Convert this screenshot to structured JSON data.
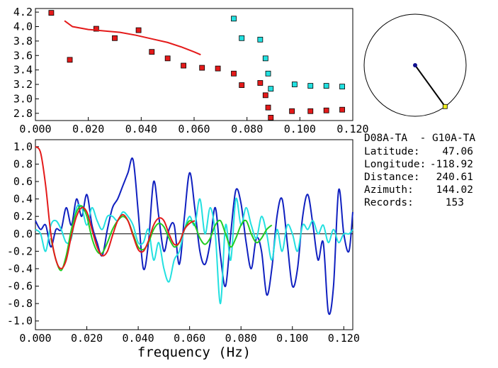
{
  "info": {
    "station_pair": "D08A-TA  - G10A-TA",
    "latitude_label": "Latitude:",
    "latitude_value": "47.06",
    "longitude_label": "Longitude:",
    "longitude_value": "-118.92",
    "distance_label": "Distance:",
    "distance_value": "240.61",
    "azimuth_label": "Azimuth:",
    "azimuth_value": "144.02",
    "records_label": "Records:",
    "records_value": "153"
  },
  "colors": {
    "red": "#e41a1a",
    "cyan": "#22e0e0",
    "blue": "#1020c0",
    "green": "#22cc22",
    "navy": "#101090",
    "yellow": "#f0f020"
  },
  "chart_data": [
    {
      "type": "scatter",
      "xlim": [
        0.0,
        0.12
      ],
      "ylim": [
        2.7,
        4.25
      ],
      "x_ticks": [
        "0.000",
        "0.020",
        "0.040",
        "0.060",
        "0.080",
        "0.100",
        "0.120"
      ],
      "y_ticks": [
        "2.8",
        "3.0",
        "3.2",
        "3.4",
        "3.6",
        "3.8",
        "4.0",
        "4.2"
      ],
      "series": [
        {
          "color": "red",
          "marker": "square",
          "points": [
            [
              0.006,
              4.19
            ],
            [
              0.013,
              3.54
            ],
            [
              0.023,
              3.97
            ],
            [
              0.03,
              3.84
            ],
            [
              0.039,
              3.95
            ],
            [
              0.044,
              3.65
            ],
            [
              0.05,
              3.56
            ],
            [
              0.056,
              3.46
            ],
            [
              0.063,
              3.43
            ],
            [
              0.069,
              3.42
            ],
            [
              0.075,
              3.35
            ],
            [
              0.078,
              3.19
            ],
            [
              0.085,
              3.22
            ],
            [
              0.087,
              3.05
            ],
            [
              0.088,
              2.88
            ],
            [
              0.089,
              2.74
            ],
            [
              0.097,
              2.83
            ],
            [
              0.104,
              2.83
            ],
            [
              0.11,
              2.84
            ],
            [
              0.116,
              2.85
            ]
          ]
        },
        {
          "color": "cyan",
          "marker": "square",
          "points": [
            [
              0.075,
              4.11
            ],
            [
              0.078,
              3.84
            ],
            [
              0.085,
              3.82
            ],
            [
              0.087,
              3.56
            ],
            [
              0.088,
              3.35
            ],
            [
              0.089,
              3.14
            ],
            [
              0.098,
              3.2
            ],
            [
              0.104,
              3.18
            ],
            [
              0.11,
              3.18
            ],
            [
              0.116,
              3.17
            ]
          ]
        },
        {
          "color": "red",
          "marker": "line",
          "points": [
            [
              0.011,
              4.08
            ],
            [
              0.014,
              4.0
            ],
            [
              0.02,
              3.96
            ],
            [
              0.026,
              3.94
            ],
            [
              0.032,
              3.92
            ],
            [
              0.038,
              3.88
            ],
            [
              0.044,
              3.83
            ],
            [
              0.05,
              3.78
            ],
            [
              0.055,
              3.72
            ],
            [
              0.06,
              3.65
            ],
            [
              0.0625,
              3.61
            ]
          ]
        }
      ]
    },
    {
      "type": "polar",
      "azimuth_deg": 144.02,
      "radius_fraction": 1.0
    },
    {
      "type": "line",
      "xlabel": "frequency (Hz)",
      "xlim": [
        0.0,
        0.1235
      ],
      "ylim": [
        -1.1,
        1.08
      ],
      "x_ticks": [
        "0.000",
        "0.020",
        "0.040",
        "0.060",
        "0.080",
        "0.100",
        "0.120"
      ],
      "y_ticks": [
        "1.0",
        "0.8",
        "0.6",
        "0.4",
        "0.2",
        "0.0",
        "-0.2",
        "-0.4",
        "-0.6",
        "-0.8",
        "-1.0"
      ],
      "series": [
        {
          "color": "blue",
          "x": [
            0.0,
            0.002,
            0.004,
            0.006,
            0.008,
            0.01,
            0.012,
            0.014,
            0.016,
            0.018,
            0.02,
            0.022,
            0.024,
            0.026,
            0.028,
            0.03,
            0.032,
            0.034,
            0.036,
            0.038,
            0.04,
            0.042,
            0.044,
            0.046,
            0.048,
            0.05,
            0.052,
            0.054,
            0.056,
            0.058,
            0.06,
            0.062,
            0.064,
            0.066,
            0.068,
            0.07,
            0.072,
            0.074,
            0.076,
            0.078,
            0.08,
            0.082,
            0.084,
            0.086,
            0.088,
            0.09,
            0.092,
            0.094,
            0.096,
            0.098,
            0.1,
            0.102,
            0.104,
            0.106,
            0.108,
            0.11,
            0.112,
            0.114,
            0.116,
            0.118,
            0.12,
            0.122,
            0.1235
          ],
          "values": [
            0.15,
            0.05,
            0.1,
            -0.15,
            0.05,
            0.05,
            0.3,
            0.1,
            0.4,
            0.2,
            0.45,
            0.1,
            -0.1,
            -0.25,
            0.05,
            0.3,
            0.4,
            0.55,
            0.7,
            0.85,
            0.25,
            -0.4,
            -0.1,
            0.6,
            0.2,
            -0.2,
            0.05,
            0.1,
            -0.35,
            0.2,
            0.7,
            0.3,
            -0.2,
            -0.35,
            -0.1,
            0.3,
            -0.25,
            -0.6,
            0.0,
            0.5,
            0.35,
            -0.1,
            -0.4,
            -0.05,
            -0.2,
            -0.7,
            -0.4,
            0.2,
            0.4,
            -0.1,
            -0.6,
            -0.4,
            0.2,
            0.45,
            0.1,
            -0.3,
            -0.1,
            -0.9,
            -0.6,
            0.5,
            0.0,
            -0.2,
            0.25
          ]
        },
        {
          "color": "cyan",
          "x": [
            0.0,
            0.002,
            0.004,
            0.006,
            0.008,
            0.01,
            0.012,
            0.014,
            0.016,
            0.018,
            0.02,
            0.022,
            0.024,
            0.026,
            0.028,
            0.03,
            0.032,
            0.034,
            0.036,
            0.038,
            0.04,
            0.042,
            0.044,
            0.046,
            0.048,
            0.05,
            0.052,
            0.054,
            0.056,
            0.058,
            0.06,
            0.062,
            0.064,
            0.066,
            0.068,
            0.07,
            0.072,
            0.074,
            0.076,
            0.078,
            0.08,
            0.082,
            0.084,
            0.086,
            0.088,
            0.09,
            0.092,
            0.094,
            0.096,
            0.098,
            0.1,
            0.102,
            0.104,
            0.106,
            0.108,
            0.11,
            0.112,
            0.114,
            0.116,
            0.118,
            0.12,
            0.122,
            0.1235
          ],
          "values": [
            0.05,
            0.0,
            -0.2,
            0.1,
            0.15,
            0.05,
            -0.1,
            -0.05,
            0.3,
            0.3,
            0.1,
            0.3,
            0.15,
            0.05,
            0.2,
            0.2,
            0.15,
            0.25,
            0.2,
            0.1,
            -0.1,
            -0.1,
            0.05,
            -0.3,
            -0.1,
            -0.4,
            -0.55,
            -0.3,
            -0.2,
            0.05,
            0.2,
            0.1,
            0.4,
            0.0,
            0.3,
            0.0,
            -0.8,
            0.1,
            -0.3,
            0.4,
            0.1,
            0.3,
            0.1,
            -0.05,
            0.2,
            0.0,
            -0.3,
            0.05,
            -0.2,
            0.1,
            0.0,
            -0.2,
            0.1,
            0.05,
            0.15,
            0.0,
            0.1,
            -0.1,
            0.05,
            -0.1,
            0.0,
            0.0,
            0.05
          ]
        },
        {
          "color": "green",
          "x": [
            0.006,
            0.008,
            0.01,
            0.012,
            0.014,
            0.016,
            0.018,
            0.02,
            0.022,
            0.024,
            0.026,
            0.028,
            0.03,
            0.032,
            0.034,
            0.036,
            0.038,
            0.04,
            0.042,
            0.044,
            0.046,
            0.048,
            0.05,
            0.052,
            0.054,
            0.056,
            0.058,
            0.06,
            0.062,
            0.064,
            0.066,
            0.068,
            0.07,
            0.072,
            0.074,
            0.076,
            0.078,
            0.08,
            0.082,
            0.084,
            0.086,
            0.088,
            0.09,
            0.092
          ],
          "values": [
            -0.05,
            -0.3,
            -0.42,
            -0.25,
            0.05,
            0.25,
            0.32,
            0.2,
            -0.05,
            -0.2,
            -0.22,
            -0.1,
            0.05,
            0.15,
            0.2,
            0.15,
            0.0,
            -0.15,
            -0.18,
            -0.1,
            0.05,
            0.12,
            0.08,
            -0.05,
            -0.15,
            -0.1,
            0.05,
            0.15,
            0.1,
            -0.05,
            -0.12,
            -0.05,
            0.1,
            0.15,
            0.0,
            -0.15,
            -0.05,
            0.1,
            0.15,
            0.0,
            -0.1,
            -0.05,
            0.05,
            0.1
          ]
        },
        {
          "color": "red",
          "x": [
            0.0,
            0.002,
            0.004,
            0.006,
            0.008,
            0.01,
            0.012,
            0.014,
            0.016,
            0.018,
            0.02,
            0.022,
            0.024,
            0.026,
            0.028,
            0.03,
            0.032,
            0.034,
            0.036,
            0.038,
            0.04,
            0.042,
            0.044,
            0.046,
            0.048,
            0.05,
            0.052,
            0.054,
            0.056,
            0.058,
            0.06,
            0.062
          ],
          "values": [
            1.0,
            0.93,
            0.55,
            0.0,
            -0.3,
            -0.4,
            -0.3,
            -0.02,
            0.2,
            0.3,
            0.25,
            0.05,
            -0.15,
            -0.25,
            -0.2,
            -0.02,
            0.15,
            0.22,
            0.15,
            -0.02,
            -0.18,
            -0.2,
            -0.08,
            0.1,
            0.18,
            0.15,
            0.0,
            -0.12,
            -0.1,
            0.05,
            0.12,
            0.15
          ]
        }
      ]
    }
  ]
}
